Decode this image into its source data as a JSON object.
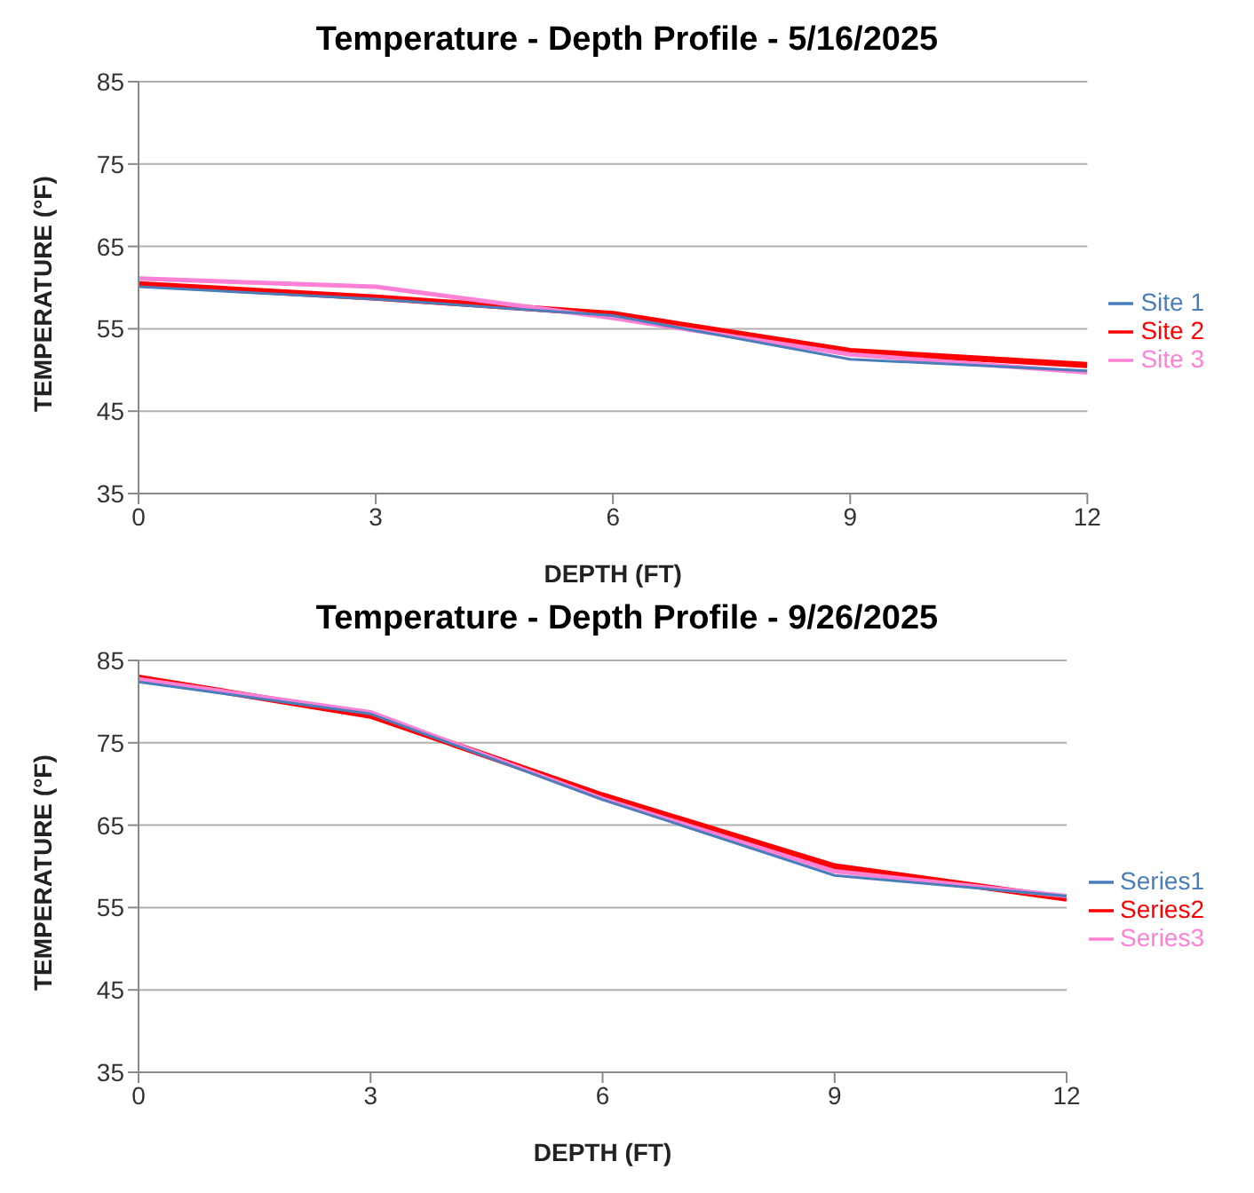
{
  "chart_data": [
    {
      "type": "line",
      "title": "Temperature - Depth Profile - 5/16/2025",
      "xlabel": "DEPTH (FT)",
      "ylabel": "TEMPERATURE (°F)",
      "x": [
        0,
        3,
        6,
        9,
        12
      ],
      "xlim": [
        0,
        12
      ],
      "xticks": [
        0,
        3,
        6,
        9,
        12
      ],
      "ylim": [
        35,
        85
      ],
      "yticks": [
        35,
        45,
        55,
        65,
        75,
        85
      ],
      "grid": "y",
      "legend": "right",
      "series": [
        {
          "name": "Site 1",
          "color": "#4a7ebb",
          "values": [
            60.1,
            58.6,
            56.6,
            51.3,
            49.9
          ]
        },
        {
          "name": "Site 2",
          "color": "#ff0000",
          "values": [
            60.4,
            58.8,
            56.8,
            52.3,
            50.6
          ]
        },
        {
          "name": "Site 3",
          "color": "#ff80d5",
          "values": [
            61.1,
            60.1,
            56.3,
            51.9,
            49.7
          ]
        }
      ]
    },
    {
      "type": "line",
      "title": "Temperature - Depth Profile - 9/26/2025",
      "xlabel": "DEPTH (FT)",
      "ylabel": "TEMPERATURE (°F)",
      "x": [
        0,
        3,
        6,
        9,
        12
      ],
      "xlim": [
        0,
        12
      ],
      "xticks": [
        0,
        3,
        6,
        9,
        12
      ],
      "ylim": [
        35,
        85
      ],
      "yticks": [
        35,
        45,
        55,
        65,
        75,
        85
      ],
      "grid": "y",
      "legend": "right",
      "series": [
        {
          "name": "Series1",
          "color": "#4a7ebb",
          "values": [
            82.4,
            78.5,
            68.1,
            58.9,
            56.4
          ]
        },
        {
          "name": "Series2",
          "color": "#ff0000",
          "values": [
            82.9,
            78.3,
            68.6,
            60.0,
            56.1
          ]
        },
        {
          "name": "Series3",
          "color": "#ff80d5",
          "values": [
            82.7,
            78.7,
            68.2,
            59.4,
            56.4
          ]
        }
      ]
    }
  ]
}
